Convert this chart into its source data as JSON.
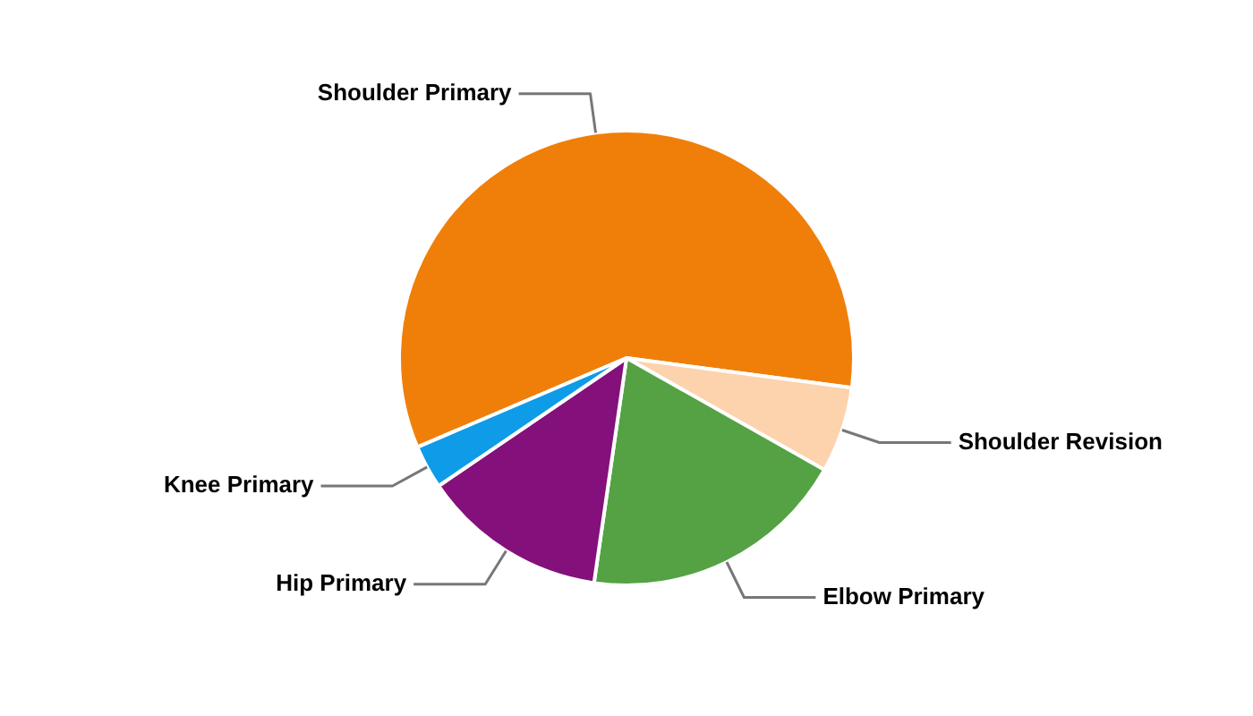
{
  "chart_data": {
    "type": "pie",
    "categories": [
      "Shoulder Primary",
      "Shoulder Revision",
      "Elbow Primary",
      "Hip Primary",
      "Knee Primary"
    ],
    "values": [
      58.5,
      6.1,
      19.1,
      13.2,
      3.1
    ],
    "colors": [
      "#f07f09",
      "#fcd3ad",
      "#54a244",
      "#84107c",
      "#0e9be8"
    ],
    "legend": false
  }
}
